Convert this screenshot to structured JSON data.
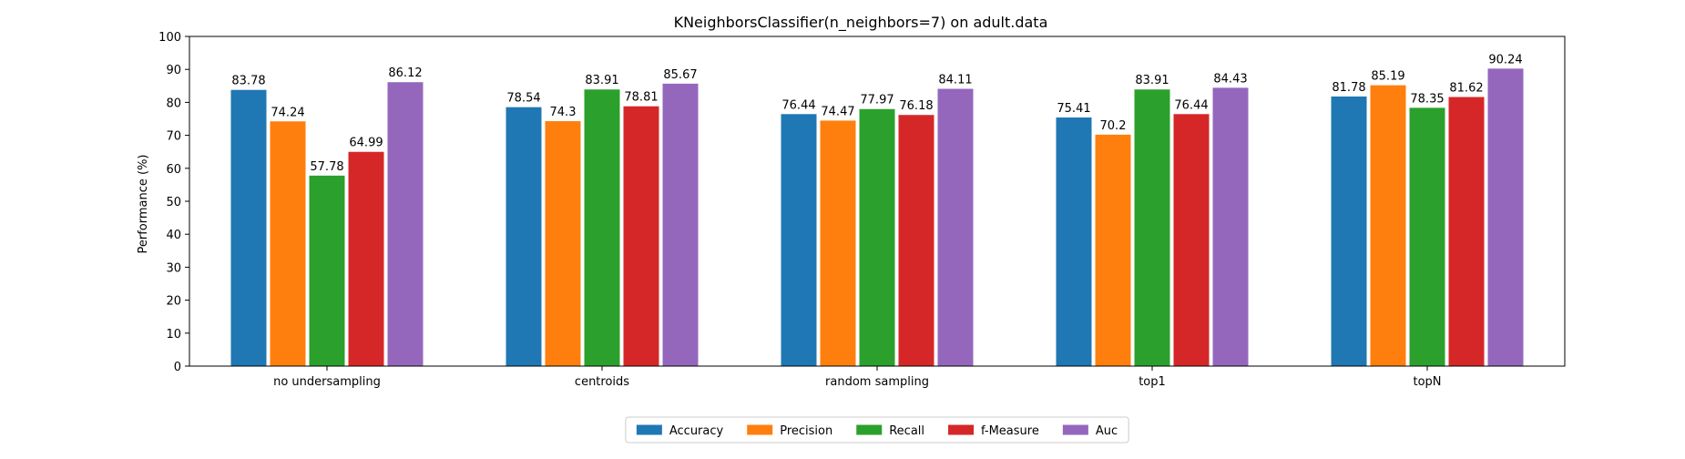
{
  "chart_data": {
    "type": "bar",
    "title": "KNeighborsClassifier(n_neighbors=7) on adult.data",
    "xlabel": "",
    "ylabel": "Performance (%)",
    "ylim": [
      0,
      100
    ],
    "yticks": [
      0,
      10,
      20,
      30,
      40,
      50,
      60,
      70,
      80,
      90,
      100
    ],
    "grid": false,
    "legend_position": "bottom-center",
    "categories": [
      "no undersampling",
      "centroids",
      "random sampling",
      "top1",
      "topN"
    ],
    "series": [
      {
        "name": "Accuracy",
        "color": "#1f77b4",
        "values": [
          83.78,
          78.54,
          76.44,
          75.41,
          81.78
        ]
      },
      {
        "name": "Precision",
        "color": "#ff7f0e",
        "values": [
          74.24,
          74.3,
          74.47,
          70.2,
          85.19
        ]
      },
      {
        "name": "Recall",
        "color": "#2ca02c",
        "values": [
          57.78,
          83.91,
          77.97,
          83.91,
          78.35
        ]
      },
      {
        "name": "f-Measure",
        "color": "#d62728",
        "values": [
          64.99,
          78.81,
          76.18,
          76.44,
          81.62
        ]
      },
      {
        "name": "Auc",
        "color": "#9467bd",
        "values": [
          86.12,
          85.67,
          84.11,
          84.43,
          90.24
        ]
      }
    ],
    "data_labels": [
      [
        "83.78",
        "78.54",
        "76.44",
        "75.41",
        "81.78"
      ],
      [
        "74.24",
        "74.3",
        "74.47",
        "70.2",
        "85.19"
      ],
      [
        "57.78",
        "83.91",
        "77.97",
        "83.91",
        "78.35"
      ],
      [
        "64.99",
        "78.81",
        "76.18",
        "76.44",
        "81.62"
      ],
      [
        "86.12",
        "85.67",
        "84.11",
        "84.43",
        "90.24"
      ]
    ]
  }
}
